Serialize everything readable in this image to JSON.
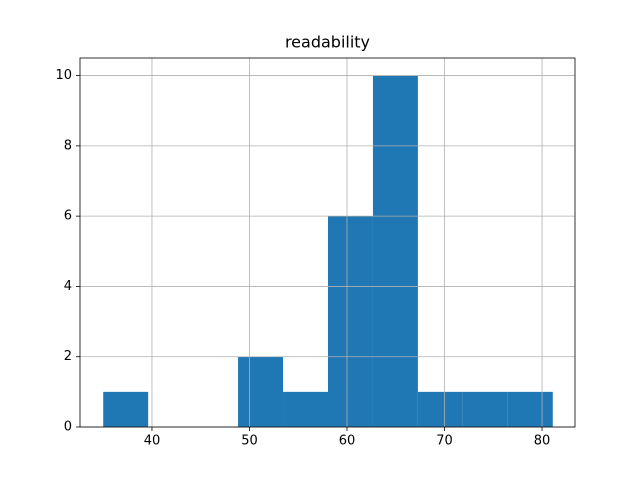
{
  "chart_data": {
    "type": "histogram",
    "title": "readability",
    "bins": [
      35,
      39.61,
      44.22,
      48.83,
      53.44,
      58.05,
      62.66,
      67.27,
      71.88,
      76.49,
      81.1
    ],
    "values": [
      1,
      0,
      0,
      2,
      1,
      6,
      10,
      1,
      1,
      1
    ],
    "color": "#1f77b4",
    "xlim": [
      32.62,
      83.38
    ],
    "xticks": [
      40,
      50,
      60,
      70,
      80
    ],
    "ylim": [
      0,
      10.5
    ],
    "yticks": [
      0,
      2,
      4,
      6,
      8,
      10
    ],
    "grid": true
  }
}
